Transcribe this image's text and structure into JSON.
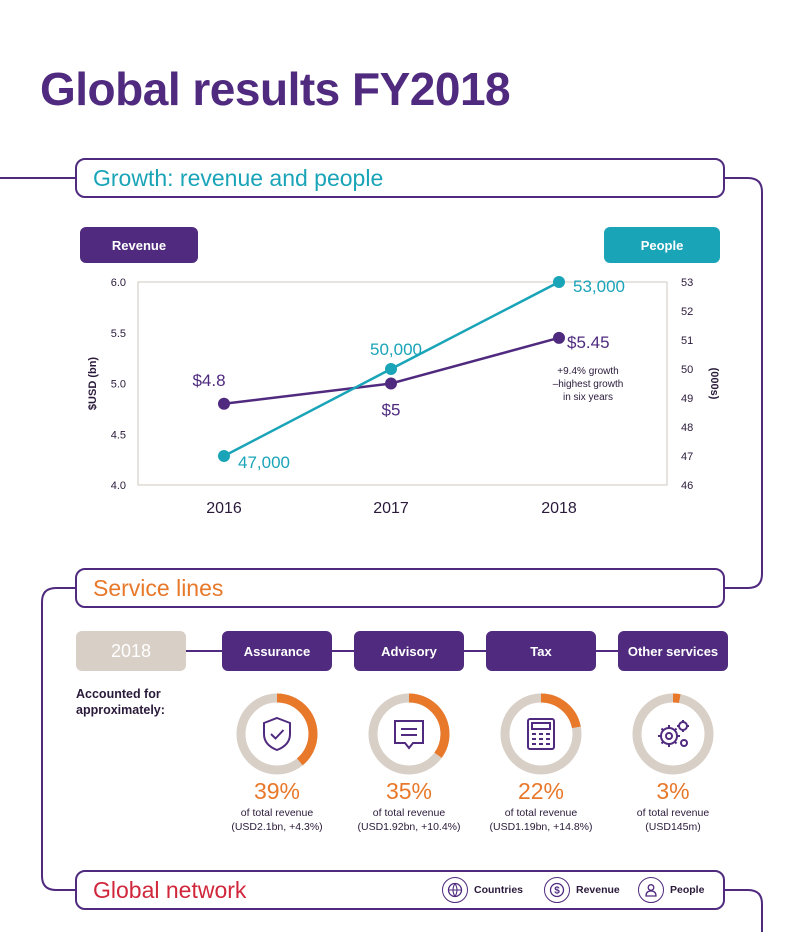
{
  "page_title": "Global results FY2018",
  "sections": {
    "growth": "Growth: revenue and people",
    "service": "Service lines",
    "network": "Global network"
  },
  "pills": {
    "revenue": "Revenue",
    "people": "People"
  },
  "chart_data": {
    "type": "line",
    "title": "Growth: revenue and people",
    "categories": [
      "2016",
      "2017",
      "2018"
    ],
    "ylabel": "$USD (bn)",
    "y2label": "(000s)",
    "ylim": [
      4.0,
      6.0
    ],
    "y2lim": [
      46,
      53
    ],
    "yticks": [
      "6.0",
      "5.5",
      "5.0",
      "4.5",
      "4.0"
    ],
    "y2ticks": [
      "53",
      "52",
      "51",
      "50",
      "49",
      "48",
      "47",
      "46"
    ],
    "series": [
      {
        "name": "Revenue",
        "axis": "left",
        "color": "#4f2a7e",
        "values": [
          4.8,
          5.0,
          5.45
        ],
        "labels": [
          "$4.8",
          "$5",
          "$5.45"
        ]
      },
      {
        "name": "People",
        "axis": "right",
        "color": "#1aa4b8",
        "values": [
          47,
          50,
          53
        ],
        "labels": [
          "47,000",
          "50,000",
          "53,000"
        ]
      }
    ],
    "annotation": [
      "+9.4% growth",
      "–highest growth",
      "in six years"
    ]
  },
  "service_lines": {
    "year": "2018",
    "accounted": "Accounted for approximately:",
    "items": [
      {
        "label": "Assurance",
        "pct": "39%",
        "fraction": 0.39,
        "desc1": "of total revenue",
        "desc2": "(USD2.1bn, +4.3%)",
        "icon": "shield-check-icon"
      },
      {
        "label": "Advisory",
        "pct": "35%",
        "fraction": 0.35,
        "desc1": "of total revenue",
        "desc2": "(USD1.92bn, +10.4%)",
        "icon": "speech-bubble-icon"
      },
      {
        "label": "Tax",
        "pct": "22%",
        "fraction": 0.22,
        "desc1": "of total revenue",
        "desc2": "(USD1.19bn, +14.8%)",
        "icon": "calculator-icon"
      },
      {
        "label": "Other services",
        "pct": "3%",
        "fraction": 0.03,
        "desc1": "of total revenue",
        "desc2": "(USD145m)",
        "icon": "gears-icon"
      }
    ]
  },
  "network_legend": [
    {
      "label": "Countries",
      "icon": "globe-icon"
    },
    {
      "label": "Revenue",
      "icon": "dollar-coin-icon"
    },
    {
      "label": "People",
      "icon": "person-icon"
    }
  ],
  "colors": {
    "purple": "#4f2a7e",
    "teal": "#1aa4b8",
    "orange": "#e8782a",
    "red": "#d0273b",
    "beige": "#d8cfc6"
  }
}
